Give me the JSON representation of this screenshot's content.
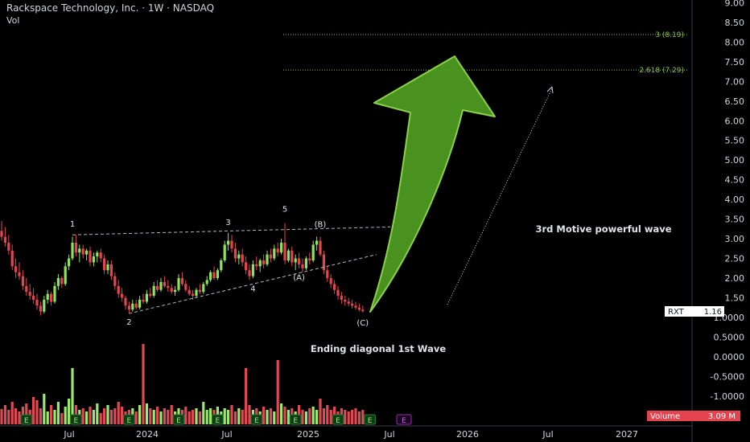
{
  "header": {
    "title": "Rackspace Technology, Inc. · 1W · NASDAQ",
    "vol_label": "Vol"
  },
  "colors": {
    "up": "#8ee35a",
    "down": "#e5444f",
    "volume_up": "#9be86a",
    "volume_down": "#e04854",
    "arrow_fill": "#4f9e22",
    "arrow_stroke": "#8bd04a",
    "fib_line": "#8bc34a",
    "volume_tag": "#e5444f",
    "earnings_badge": "#2e7d32",
    "earnings_future": "#9c27b0"
  },
  "chart_data": {
    "type": "candlestick",
    "symbol": "RXT",
    "last_price_label": "RXT",
    "last_price": "1.16",
    "volume_label": "Volume",
    "volume_value": "3.09 M",
    "price_axis_ticks": [
      "9.00",
      "8.50",
      "8.00",
      "7.50",
      "7.00",
      "6.50",
      "6.00",
      "5.50",
      "5.00",
      "4.50",
      "4.00",
      "3.50",
      "3.00",
      "2.50",
      "2.00",
      "1.50",
      "1.0000",
      "0.5000",
      "0.0000",
      "-0.5000",
      "-1.0000"
    ],
    "time_axis_ticks": [
      "Jul",
      "2024",
      "Jul",
      "2025",
      "Jul",
      "2026",
      "Jul",
      "2027"
    ],
    "price_range": [
      -1.5,
      9.0
    ],
    "candles": [
      [
        3.2,
        3.45,
        2.95,
        3.05
      ],
      [
        3.05,
        3.3,
        2.8,
        2.9
      ],
      [
        2.9,
        3.1,
        2.6,
        2.7
      ],
      [
        2.7,
        2.85,
        2.2,
        2.3
      ],
      [
        2.3,
        2.5,
        2.0,
        2.15
      ],
      [
        2.15,
        2.4,
        1.95,
        2.05
      ],
      [
        2.05,
        2.2,
        1.7,
        1.8
      ],
      [
        1.8,
        2.0,
        1.55,
        1.65
      ],
      [
        1.65,
        1.85,
        1.45,
        1.55
      ],
      [
        1.55,
        1.75,
        1.35,
        1.45
      ],
      [
        1.45,
        1.6,
        1.2,
        1.3
      ],
      [
        1.3,
        1.4,
        1.05,
        1.15
      ],
      [
        1.15,
        1.55,
        1.1,
        1.45
      ],
      [
        1.45,
        1.7,
        1.35,
        1.6
      ],
      [
        1.6,
        1.65,
        1.3,
        1.4
      ],
      [
        1.4,
        1.9,
        1.35,
        1.8
      ],
      [
        1.8,
        2.1,
        1.7,
        2.0
      ],
      [
        2.0,
        2.05,
        1.75,
        1.85
      ],
      [
        1.85,
        2.4,
        1.8,
        2.3
      ],
      [
        2.3,
        2.6,
        2.2,
        2.5
      ],
      [
        2.5,
        3.05,
        2.45,
        2.9
      ],
      [
        2.9,
        3.1,
        2.55,
        2.65
      ],
      [
        2.65,
        2.85,
        2.4,
        2.75
      ],
      [
        2.75,
        2.85,
        2.5,
        2.6
      ],
      [
        2.6,
        2.75,
        2.45,
        2.7
      ],
      [
        2.7,
        2.8,
        2.3,
        2.4
      ],
      [
        2.4,
        2.65,
        2.3,
        2.55
      ],
      [
        2.55,
        2.7,
        2.4,
        2.65
      ],
      [
        2.65,
        2.75,
        2.4,
        2.5
      ],
      [
        2.5,
        2.6,
        2.1,
        2.2
      ],
      [
        2.2,
        2.45,
        2.1,
        2.35
      ],
      [
        2.35,
        2.45,
        1.95,
        2.05
      ],
      [
        2.05,
        2.15,
        1.7,
        1.8
      ],
      [
        1.8,
        1.95,
        1.5,
        1.6
      ],
      [
        1.6,
        1.75,
        1.4,
        1.5
      ],
      [
        1.5,
        1.55,
        1.2,
        1.3
      ],
      [
        1.3,
        1.4,
        1.1,
        1.2
      ],
      [
        1.2,
        1.45,
        1.15,
        1.35
      ],
      [
        1.35,
        1.45,
        1.2,
        1.25
      ],
      [
        1.25,
        1.55,
        1.2,
        1.45
      ],
      [
        1.45,
        1.6,
        1.35,
        1.4
      ],
      [
        1.4,
        1.7,
        1.35,
        1.6
      ],
      [
        1.6,
        1.75,
        1.5,
        1.55
      ],
      [
        1.55,
        1.9,
        1.5,
        1.8
      ],
      [
        1.8,
        1.95,
        1.65,
        1.7
      ],
      [
        1.7,
        2.0,
        1.65,
        1.9
      ],
      [
        1.9,
        2.05,
        1.75,
        1.8
      ],
      [
        1.8,
        1.95,
        1.65,
        1.75
      ],
      [
        1.75,
        1.85,
        1.6,
        1.65
      ],
      [
        1.65,
        1.8,
        1.55,
        1.7
      ],
      [
        1.7,
        2.1,
        1.65,
        2.0
      ],
      [
        2.0,
        2.15,
        1.8,
        1.85
      ],
      [
        1.85,
        1.95,
        1.65,
        1.7
      ],
      [
        1.7,
        1.8,
        1.55,
        1.6
      ],
      [
        1.6,
        1.7,
        1.45,
        1.55
      ],
      [
        1.55,
        1.75,
        1.5,
        1.7
      ],
      [
        1.7,
        1.85,
        1.6,
        1.65
      ],
      [
        1.65,
        1.9,
        1.6,
        1.85
      ],
      [
        1.85,
        2.05,
        1.8,
        1.95
      ],
      [
        1.95,
        2.2,
        1.9,
        2.15
      ],
      [
        2.15,
        2.3,
        1.95,
        2.0
      ],
      [
        2.0,
        2.25,
        1.95,
        2.2
      ],
      [
        2.2,
        2.5,
        2.15,
        2.45
      ],
      [
        2.45,
        2.95,
        2.4,
        2.85
      ],
      [
        2.85,
        3.15,
        2.7,
        2.95
      ],
      [
        2.95,
        3.1,
        2.65,
        2.75
      ],
      [
        2.75,
        2.9,
        2.4,
        2.5
      ],
      [
        2.5,
        2.7,
        2.35,
        2.6
      ],
      [
        2.6,
        2.75,
        2.3,
        2.4
      ],
      [
        2.4,
        2.55,
        2.1,
        2.2
      ],
      [
        2.2,
        2.35,
        1.95,
        2.05
      ],
      [
        2.05,
        2.45,
        2.0,
        2.35
      ],
      [
        2.35,
        2.55,
        2.2,
        2.3
      ],
      [
        2.3,
        2.5,
        2.15,
        2.45
      ],
      [
        2.45,
        2.6,
        2.25,
        2.35
      ],
      [
        2.35,
        2.7,
        2.3,
        2.6
      ],
      [
        2.6,
        2.75,
        2.4,
        2.5
      ],
      [
        2.5,
        2.85,
        2.45,
        2.75
      ],
      [
        2.75,
        2.9,
        2.55,
        2.65
      ],
      [
        2.65,
        3.0,
        2.6,
        2.9
      ],
      [
        2.9,
        3.4,
        2.35,
        2.45
      ],
      [
        2.45,
        2.75,
        2.4,
        2.7
      ],
      [
        2.7,
        2.8,
        2.3,
        2.4
      ],
      [
        2.4,
        2.6,
        2.2,
        2.5
      ],
      [
        2.5,
        2.65,
        2.25,
        2.35
      ],
      [
        2.35,
        2.5,
        2.15,
        2.25
      ],
      [
        2.25,
        2.55,
        2.2,
        2.5
      ],
      [
        2.5,
        2.65,
        2.35,
        2.45
      ],
      [
        2.45,
        2.95,
        2.4,
        2.85
      ],
      [
        2.85,
        3.05,
        2.7,
        2.95
      ],
      [
        2.95,
        3.05,
        2.55,
        2.6
      ],
      [
        2.6,
        2.7,
        2.1,
        2.2
      ],
      [
        2.2,
        2.3,
        1.9,
        2.0
      ],
      [
        2.0,
        2.1,
        1.75,
        1.85
      ],
      [
        1.85,
        1.95,
        1.6,
        1.7
      ],
      [
        1.7,
        1.8,
        1.45,
        1.55
      ],
      [
        1.55,
        1.65,
        1.35,
        1.45
      ],
      [
        1.45,
        1.55,
        1.3,
        1.4
      ],
      [
        1.4,
        1.5,
        1.28,
        1.35
      ],
      [
        1.35,
        1.45,
        1.22,
        1.3
      ],
      [
        1.3,
        1.4,
        1.2,
        1.25
      ],
      [
        1.25,
        1.35,
        1.15,
        1.2
      ],
      [
        1.2,
        1.3,
        1.12,
        1.16
      ]
    ],
    "volumes": [
      0.95,
      1.2,
      0.9,
      1.4,
      1.0,
      0.8,
      1.1,
      1.3,
      0.9,
      1.7,
      1.5,
      1.0,
      1.9,
      0.8,
      1.2,
      0.9,
      1.4,
      0.7,
      1.1,
      1.6,
      3.5,
      1.2,
      0.9,
      1.0,
      0.8,
      1.1,
      0.9,
      1.3,
      0.7,
      1.0,
      1.2,
      0.9,
      1.0,
      1.4,
      1.1,
      0.8,
      0.9,
      1.0,
      0.8,
      1.2,
      5.0,
      1.3,
      1.0,
      0.9,
      1.1,
      0.8,
      1.0,
      0.9,
      1.2,
      0.8,
      1.0,
      0.9,
      1.1,
      0.8,
      0.9,
      1.0,
      0.8,
      1.4,
      0.9,
      1.0,
      0.9,
      1.1,
      0.8,
      1.0,
      0.9,
      1.2,
      0.8,
      1.0,
      0.9,
      3.5,
      1.2,
      0.9,
      1.0,
      0.8,
      1.1,
      0.9,
      1.0,
      0.8,
      4.0,
      1.3,
      1.1,
      0.9,
      1.0,
      0.8,
      1.2,
      0.9,
      0.8,
      1.0,
      1.1,
      0.9,
      1.6,
      1.0,
      1.2,
      0.9,
      1.1,
      0.8,
      1.0,
      0.9,
      0.8,
      0.9,
      1.0,
      0.8,
      0.9
    ],
    "waves": {
      "labels": [
        "1",
        "2",
        "3",
        "4",
        "5",
        "(A)",
        "(B)",
        "(C)"
      ],
      "points": [
        {
          "label": "1",
          "index": 20,
          "price": 3.1
        },
        {
          "label": "2",
          "index": 36,
          "price": 1.1
        },
        {
          "label": "3",
          "index": 64,
          "price": 3.15
        },
        {
          "label": "4",
          "index": 71,
          "price": 1.95
        },
        {
          "label": "5",
          "index": 80,
          "price": 3.4
        },
        {
          "label": "(A)",
          "index": 84,
          "price": 2.2
        },
        {
          "label": "(B)",
          "index": 90,
          "price": 3.05
        },
        {
          "label": "(C)",
          "index": 102,
          "price": 1.12
        }
      ]
    },
    "fib_levels": [
      {
        "label": "3 (8.19)",
        "price": 8.19
      },
      {
        "label": "2.618 (7.29)",
        "price": 7.29
      }
    ],
    "annotations": {
      "motive": "3rd Motive powerful wave",
      "ending": "Ending diagonal 1st Wave"
    },
    "earnings_marker": "E",
    "earnings_indices": [
      7,
      21,
      36,
      50,
      61,
      72,
      83,
      95,
      104
    ],
    "earnings_future_index": 113
  }
}
